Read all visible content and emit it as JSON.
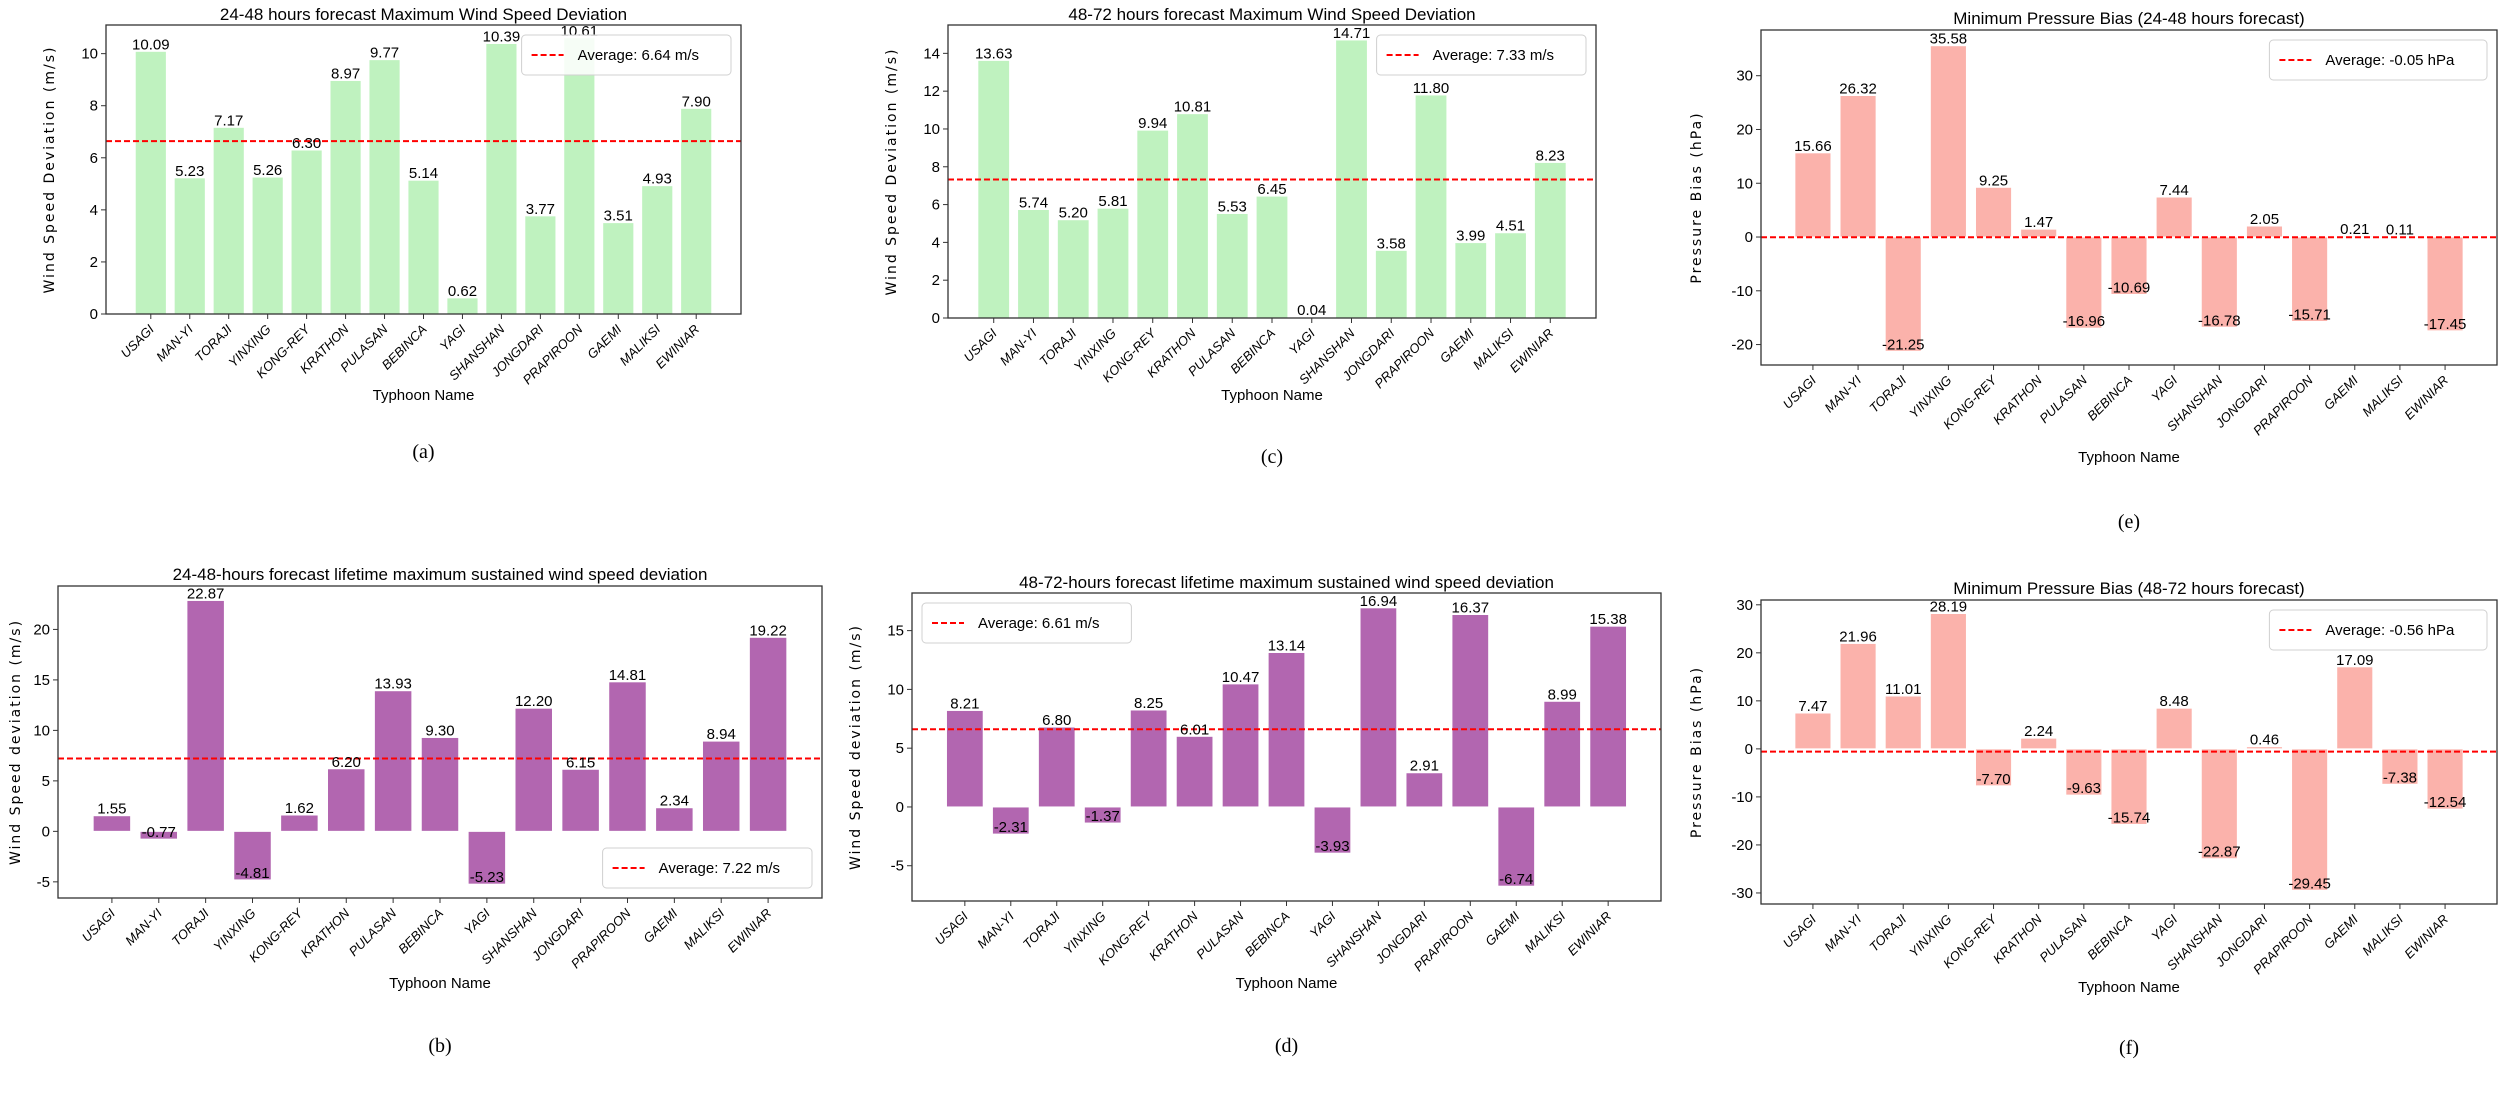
{
  "chart_data": [
    {
      "id": "a",
      "panel_label": "(a)",
      "type": "bar",
      "title": "24-48 hours forecast Maximum Wind Speed Deviation",
      "xlabel": "Typhoon Name",
      "ylabel": "Wind Speed Deviation (m/s)",
      "categories": [
        "USAGI",
        "MAN-YI",
        "TORAJI",
        "YINXING",
        "KONG-REY",
        "KRATHON",
        "PULASAN",
        "BEBINCA",
        "YAGI",
        "SHANSHAN",
        "JONGDARI",
        "PRAPIROON",
        "GAEMI",
        "MALIKSI",
        "EWINIAR"
      ],
      "values": [
        10.09,
        5.23,
        7.17,
        5.26,
        6.3,
        8.97,
        9.77,
        5.14,
        0.62,
        10.39,
        3.77,
        10.61,
        3.51,
        4.93,
        7.9
      ],
      "average": 6.64,
      "legend_label": "Average: 6.64 m/s",
      "legend_position": "top-right",
      "ylim": [
        0,
        11.1
      ],
      "yticks": [
        0,
        2,
        4,
        6,
        8,
        10
      ],
      "bar_color": "#bff2bf",
      "avg_color": "#ff0000",
      "grid": false
    },
    {
      "id": "c",
      "panel_label": "(c)",
      "type": "bar",
      "title": "48-72 hours forecast Maximum Wind Speed Deviation",
      "xlabel": "Typhoon Name",
      "ylabel": "Wind Speed Deviation (m/s)",
      "categories": [
        "USAGI",
        "MAN-YI",
        "TORAJI",
        "YINXING",
        "KONG-REY",
        "KRATHON",
        "PULASAN",
        "BEBINCA",
        "YAGI",
        "SHANSHAN",
        "JONGDARI",
        "PRAPIROON",
        "GAEMI",
        "MALIKSI",
        "EWINIAR"
      ],
      "values": [
        13.63,
        5.74,
        5.2,
        5.81,
        9.94,
        10.81,
        5.53,
        6.45,
        0.04,
        14.71,
        3.58,
        11.8,
        3.99,
        4.51,
        8.23
      ],
      "average": 7.33,
      "legend_label": "Average: 7.33 m/s",
      "legend_position": "top-right",
      "ylim": [
        0,
        15.5
      ],
      "yticks": [
        0,
        2,
        4,
        6,
        8,
        10,
        12,
        14
      ],
      "bar_color": "#bff2bf",
      "avg_color": "#ff0000",
      "grid": false
    },
    {
      "id": "e",
      "panel_label": "(e)",
      "type": "bar",
      "title": "Minimum Pressure Bias (24-48 hours forecast)",
      "xlabel": "Typhoon Name",
      "ylabel": "Pressure Bias (hPa)",
      "categories": [
        "USAGI",
        "MAN-YI",
        "TORAJI",
        "YINXING",
        "KONG-REY",
        "KRATHON",
        "PULASAN",
        "BEBINCA",
        "YAGI",
        "SHANSHAN",
        "JONGDARI",
        "PRAPIROON",
        "GAEMI",
        "MALIKSI",
        "EWINIAR"
      ],
      "values": [
        15.66,
        26.32,
        -21.25,
        35.58,
        9.25,
        1.47,
        -16.96,
        -10.69,
        7.44,
        -16.78,
        2.05,
        -15.71,
        0.21,
        0.11,
        -17.45
      ],
      "average": -0.05,
      "legend_label": "Average: -0.05 hPa",
      "legend_position": "top-right",
      "ylim": [
        -23.8,
        38.5
      ],
      "yticks": [
        -20,
        -10,
        0,
        10,
        20,
        30
      ],
      "bar_color": "#fbb2ab",
      "avg_color": "#ff0000",
      "grid": false
    },
    {
      "id": "b",
      "panel_label": "(b)",
      "type": "bar",
      "title": "24-48-hours forecast lifetime maximum sustained wind speed deviation",
      "xlabel": "Typhoon Name",
      "ylabel": "Wind Speed deviation (m/s)",
      "categories": [
        "USAGI",
        "MAN-YI",
        "TORAJI",
        "YINXING",
        "KONG-REY",
        "KRATHON",
        "PULASAN",
        "BEBINCA",
        "YAGI",
        "SHANSHAN",
        "JONGDARI",
        "PRAPIROON",
        "GAEMI",
        "MALIKSI",
        "EWINIAR"
      ],
      "values": [
        1.55,
        -0.77,
        22.87,
        -4.81,
        1.62,
        6.2,
        13.93,
        9.3,
        -5.23,
        12.2,
        6.15,
        14.81,
        2.34,
        8.94,
        19.22
      ],
      "average": 7.22,
      "legend_label": "Average: 7.22 m/s",
      "legend_position": "lower-right",
      "ylim": [
        -6.6,
        24.3
      ],
      "yticks": [
        -5,
        0,
        5,
        10,
        15,
        20
      ],
      "bar_color": "#b266b0",
      "avg_color": "#ff0000",
      "grid": false
    },
    {
      "id": "d",
      "panel_label": "(d)",
      "type": "bar",
      "title": "48-72-hours forecast lifetime maximum sustained wind speed deviation",
      "xlabel": "Typhoon Name",
      "ylabel": "Wind Speed deviation (m/s)",
      "categories": [
        "USAGI",
        "MAN-YI",
        "TORAJI",
        "YINXING",
        "KONG-REY",
        "KRATHON",
        "PULASAN",
        "BEBINCA",
        "YAGI",
        "SHANSHAN",
        "JONGDARI",
        "PRAPIROON",
        "GAEMI",
        "MALIKSI",
        "EWINIAR"
      ],
      "values": [
        8.21,
        -2.31,
        6.8,
        -1.37,
        8.25,
        6.01,
        10.47,
        13.14,
        -3.93,
        16.94,
        2.91,
        16.37,
        -6.74,
        8.99,
        15.38
      ],
      "average": 6.61,
      "legend_label": "Average: 6.61 m/s",
      "legend_position": "upper-left",
      "ylim": [
        -8.0,
        18.2
      ],
      "yticks": [
        -5,
        0,
        5,
        10,
        15
      ],
      "bar_color": "#b266b0",
      "avg_color": "#ff0000",
      "grid": false
    },
    {
      "id": "f",
      "panel_label": "(f)",
      "type": "bar",
      "title": "Minimum Pressure Bias (48-72 hours forecast)",
      "xlabel": "Typhoon Name",
      "ylabel": "Pressure Bias (hPa)",
      "categories": [
        "USAGI",
        "MAN-YI",
        "TORAJI",
        "YINXING",
        "KONG-REY",
        "KRATHON",
        "PULASAN",
        "BEBINCA",
        "YAGI",
        "SHANSHAN",
        "JONGDARI",
        "PRAPIROON",
        "GAEMI",
        "MALIKSI",
        "EWINIAR"
      ],
      "values": [
        7.47,
        21.96,
        11.01,
        28.19,
        -7.7,
        2.24,
        -9.63,
        -15.74,
        8.48,
        -22.87,
        0.46,
        -29.45,
        17.09,
        -7.38,
        -12.54
      ],
      "average": -0.56,
      "legend_label": "Average: -0.56 hPa",
      "legend_position": "top-right",
      "ylim": [
        -32.3,
        31.0
      ],
      "yticks": [
        -30,
        -20,
        -10,
        0,
        10,
        20,
        30
      ],
      "bar_color": "#fbb2ab",
      "avg_color": "#ff0000",
      "grid": false
    }
  ]
}
